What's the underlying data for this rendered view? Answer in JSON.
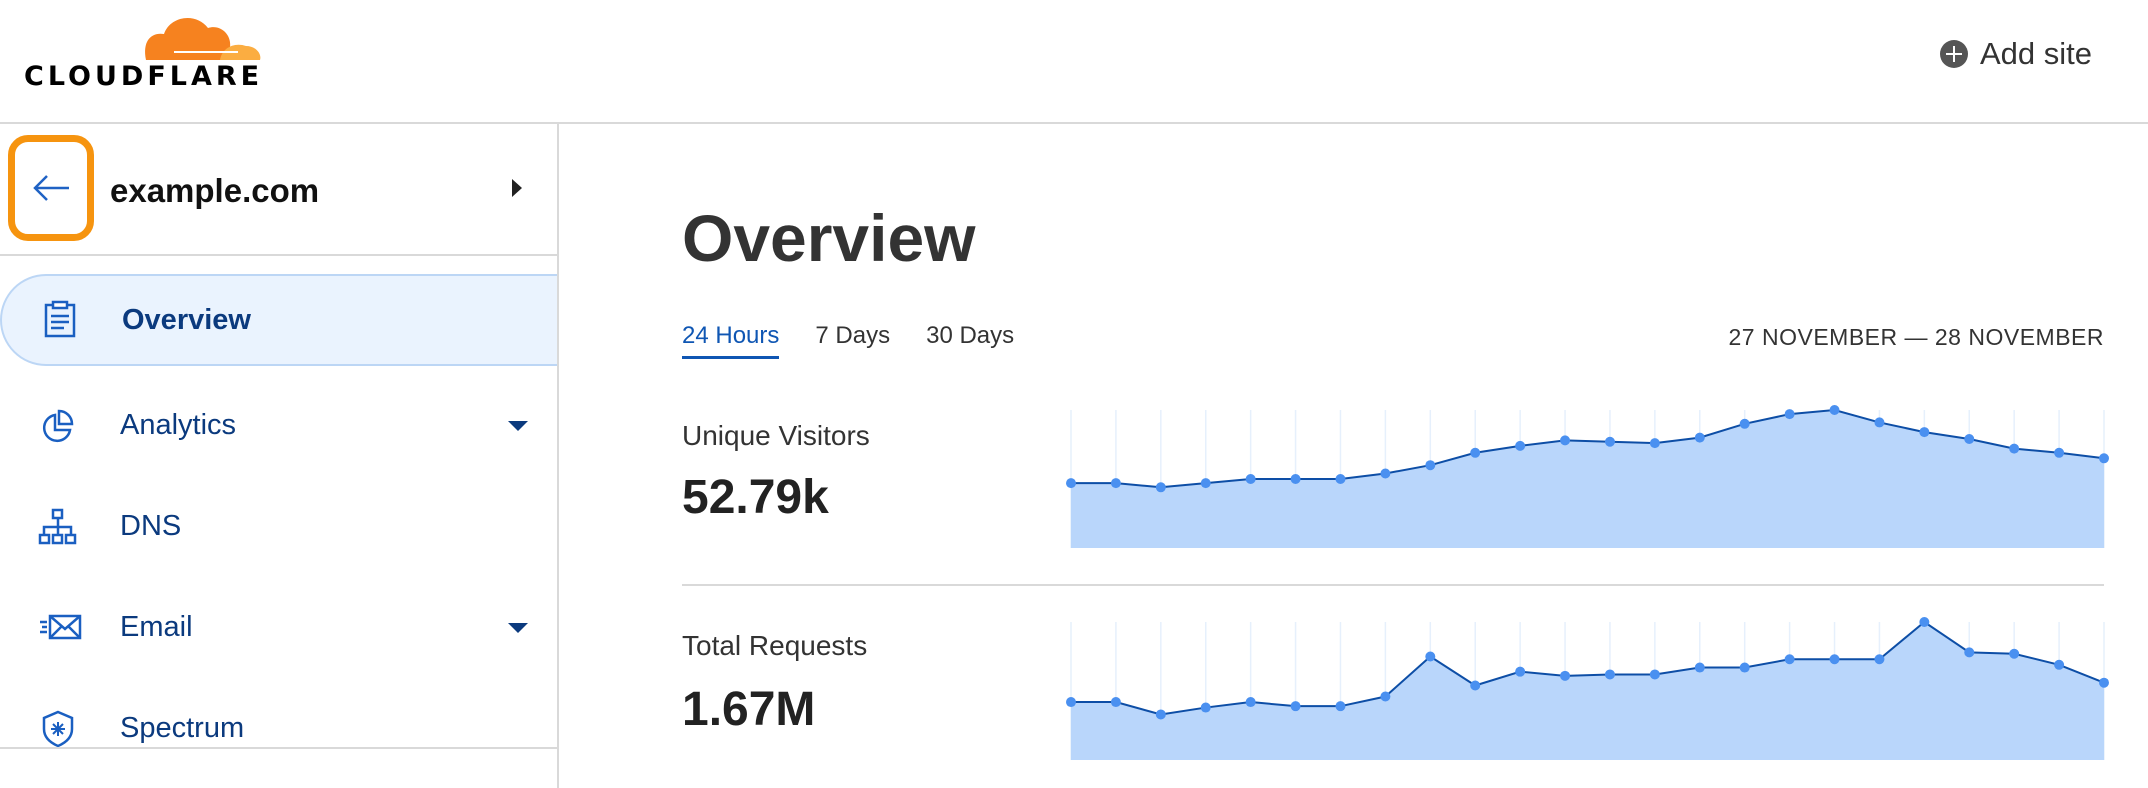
{
  "header": {
    "logo_text": "CLOUDFLARE",
    "add_site_label": "Add site",
    "brand_color": "#f6821f"
  },
  "sidebar": {
    "domain": "example.com",
    "highlight_color": "#f6940f",
    "items": [
      {
        "label": "Overview",
        "icon": "clipboard-icon",
        "active": true
      },
      {
        "label": "Analytics",
        "icon": "pie-chart-icon",
        "dropdown": true
      },
      {
        "label": "DNS",
        "icon": "network-icon"
      },
      {
        "label": "Email",
        "icon": "envelope-icon",
        "dropdown": true
      },
      {
        "label": "Spectrum",
        "icon": "shield-icon"
      }
    ]
  },
  "main": {
    "title": "Overview",
    "tabs": [
      {
        "label": "24 Hours",
        "active": true
      },
      {
        "label": "7 Days"
      },
      {
        "label": "30 Days"
      }
    ],
    "date_range": "27 NOVEMBER — 28 NOVEMBER",
    "metrics": [
      {
        "label": "Unique Visitors",
        "value": "52.79k"
      },
      {
        "label": "Total Requests",
        "value": "1.67M"
      }
    ]
  },
  "chart_data": [
    {
      "type": "area",
      "ylim": [
        0,
        100
      ],
      "grid": "vertical",
      "line_color": "#0d4ea6",
      "fill_color": "#b9d6fb",
      "point_color": "#4a90f0",
      "values": [
        47,
        47,
        44,
        47,
        50,
        50,
        50,
        54,
        60,
        69,
        74,
        78,
        77,
        76,
        80,
        90,
        97,
        100,
        91,
        84,
        79,
        72,
        69,
        65
      ]
    },
    {
      "type": "area",
      "ylim": [
        0,
        100
      ],
      "grid": "vertical",
      "line_color": "#0d4ea6",
      "fill_color": "#b9d6fb",
      "point_color": "#4a90f0",
      "values": [
        42,
        42,
        33,
        38,
        42,
        39,
        39,
        46,
        75,
        54,
        64,
        61,
        62,
        62,
        67,
        67,
        73,
        73,
        73,
        100,
        78,
        77,
        69,
        56
      ]
    }
  ]
}
